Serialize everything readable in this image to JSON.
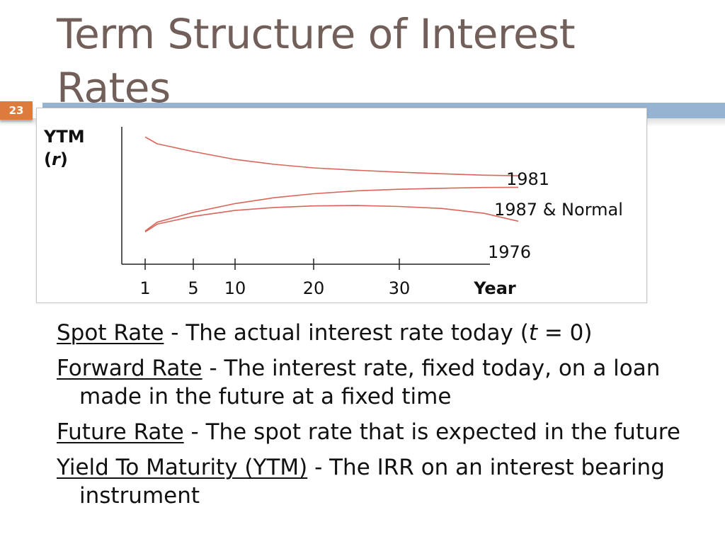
{
  "slide": {
    "title": "Term Structure of Interest Rates",
    "number": "23"
  },
  "chart_data": {
    "type": "line",
    "ylabel_line1": "YTM",
    "ylabel_var": "r",
    "xlabel": "Year",
    "x_ticks": [
      1,
      5,
      10,
      20,
      30
    ],
    "x_tick_labels": [
      "1",
      "5",
      "10",
      "20",
      "30"
    ],
    "x_range": [
      0,
      45
    ],
    "series": [
      {
        "name": "1981",
        "color": "#d9665a",
        "x": [
          1,
          2,
          5,
          10,
          15,
          20,
          25,
          30,
          35,
          40,
          44
        ],
        "y": [
          5.7,
          5.35,
          4.95,
          4.55,
          4.3,
          4.12,
          4.0,
          3.9,
          3.82,
          3.75,
          3.72
        ]
      },
      {
        "name": "1987 & Normal",
        "color": "#d9665a",
        "x": [
          1,
          2,
          5,
          10,
          15,
          20,
          25,
          30,
          35,
          40,
          44
        ],
        "y": [
          0.9,
          1.35,
          1.85,
          2.3,
          2.6,
          2.8,
          2.95,
          3.03,
          3.08,
          3.12,
          3.13
        ]
      },
      {
        "name": "1976",
        "color": "#d9665a",
        "x": [
          1,
          2,
          5,
          10,
          15,
          20,
          25,
          30,
          35,
          40,
          44
        ],
        "y": [
          0.85,
          1.25,
          1.65,
          1.95,
          2.1,
          2.18,
          2.2,
          2.15,
          2.05,
          1.8,
          1.4
        ]
      }
    ],
    "series_labels": [
      "1981",
      "1987 & Normal",
      "1976"
    ],
    "axis_color": "#222222"
  },
  "definitions": [
    {
      "term": "Spot Rate",
      "text_before": " - The actual interest rate today (",
      "italic": "t",
      "text_after": " = 0)"
    },
    {
      "term": "Forward Rate",
      "text": " - The interest rate, fixed today, on a loan made in the future at a fixed time"
    },
    {
      "term": "Future Rate",
      "text": " - The spot rate that is expected in the future"
    },
    {
      "term": "Yield To Maturity (YTM)",
      "text": " - The IRR on an interest bearing instrument"
    }
  ]
}
